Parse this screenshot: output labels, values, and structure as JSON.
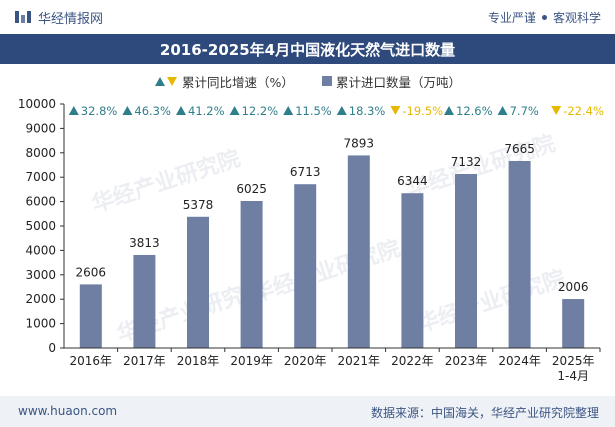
{
  "header": {
    "brand": "华经情报网",
    "right_left": "专业严谨",
    "right_right": "客观科学"
  },
  "legend": {
    "growth_label": "累计同比增速（%）",
    "volume_label": "累计进口数量（万吨）"
  },
  "footer": {
    "left": "www.huaon.com",
    "right": "数据来源：中国海关，华经产业研究院整理"
  },
  "colors": {
    "bar": "#6e7fa3",
    "up": "#2f7f8a",
    "down": "#e6b800",
    "title_bg": "#2e4a7c"
  },
  "chart_data": {
    "type": "bar",
    "title": "2016-2025年4月中国液化天然气进口数量",
    "categories": [
      "2016年",
      "2017年",
      "2018年",
      "2019年",
      "2020年",
      "2021年",
      "2022年",
      "2023年",
      "2024年",
      "2025年\n1-4月"
    ],
    "series": [
      {
        "name": "累计进口数量（万吨）",
        "values": [
          2606,
          3813,
          5378,
          6025,
          6713,
          7893,
          6344,
          7132,
          7665,
          2006
        ]
      },
      {
        "name": "累计同比增速（%）",
        "values": [
          32.8,
          46.3,
          41.2,
          12.2,
          11.5,
          18.3,
          -19.5,
          12.6,
          7.7,
          -22.4
        ]
      }
    ],
    "growth_labels": [
      "32.8%",
      "46.3%",
      "41.2%",
      "12.2%",
      "11.5%",
      "18.3%",
      "-19.5%",
      "12.6%",
      "7.7%",
      "-22.4%"
    ],
    "ylim": [
      0,
      10000
    ],
    "yticks": [
      0,
      1000,
      2000,
      3000,
      4000,
      5000,
      6000,
      7000,
      8000,
      9000,
      10000
    ],
    "xlabel": "",
    "ylabel": ""
  }
}
